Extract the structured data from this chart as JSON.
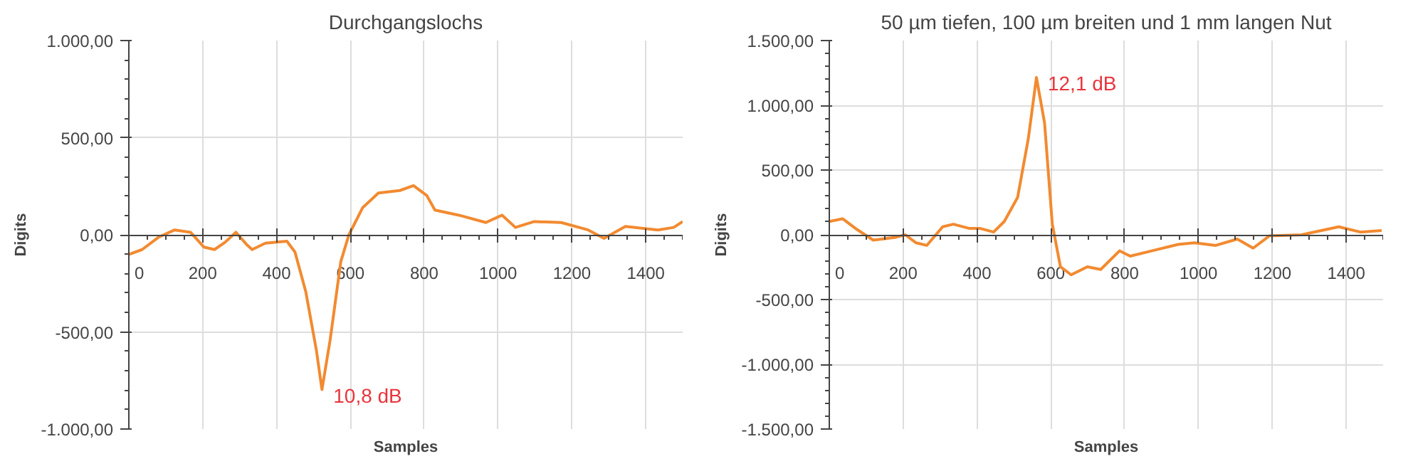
{
  "chart_data": [
    {
      "type": "line",
      "title": "Durchgangslochs",
      "xlabel": "Samples",
      "ylabel": "Digits",
      "xlim": [
        0,
        1500
      ],
      "xticks": [
        0,
        200,
        400,
        600,
        800,
        1000,
        1200,
        1400
      ],
      "ylim": [
        -1000,
        1000
      ],
      "yticks": [
        {
          "value": -1000,
          "label": "-1.000,00"
        },
        {
          "value": -500,
          "label": "-500,00"
        },
        {
          "value": 0,
          "label": "0,00"
        },
        {
          "value": 500,
          "label": "500,00"
        },
        {
          "value": 1000,
          "label": "1.000,00"
        }
      ],
      "grid": true,
      "series": [
        {
          "color": "#f28a30",
          "x": [
            0,
            36,
            80,
            124,
            167,
            203,
            232,
            261,
            290,
            319,
            334,
            370,
            428,
            450,
            479,
            508,
            523,
            545,
            574,
            596,
            633,
            676,
            734,
            771,
            807,
            829,
            894,
            967,
            1011,
            1047,
            1098,
            1171,
            1244,
            1287,
            1345,
            1433,
            1476,
            1500
          ],
          "values": [
            -101,
            -76,
            -13,
            25,
            13,
            -63,
            -76,
            -38,
            13,
            -50,
            -76,
            -43,
            -33,
            -89,
            -291,
            -595,
            -797,
            -544,
            -139,
            0,
            139,
            215,
            228,
            253,
            202,
            127,
            101,
            63,
            101,
            38,
            68,
            63,
            25,
            -18,
            43,
            25,
            38,
            68
          ]
        }
      ],
      "annotations": [
        {
          "text": "10,8 dB",
          "x": 523,
          "y": -797
        }
      ]
    },
    {
      "type": "line",
      "title": "50 µm tiefen, 100 µm breiten und 1 mm langen Nut",
      "xlabel": "Samples",
      "ylabel": "Digits",
      "xlim": [
        0,
        1500
      ],
      "xticks": [
        0,
        200,
        400,
        600,
        800,
        1000,
        1200,
        1400
      ],
      "ylim": [
        -1500,
        1500
      ],
      "yticks": [
        {
          "value": -1500,
          "label": "-1.500,00"
        },
        {
          "value": -1000,
          "label": "-1.000,00"
        },
        {
          "value": -500,
          "label": "-500,00"
        },
        {
          "value": 0,
          "label": "0,00"
        },
        {
          "value": 500,
          "label": "500,00"
        },
        {
          "value": 1000,
          "label": "1.000,00"
        },
        {
          "value": 1500,
          "label": "1.500,00"
        }
      ],
      "grid": true,
      "series": [
        {
          "color": "#f28a30",
          "x": [
            0,
            36,
            75,
            119,
            177,
            206,
            235,
            264,
            307,
            336,
            380,
            409,
            445,
            474,
            510,
            539,
            561,
            583,
            604,
            626,
            655,
            699,
            735,
            786,
            815,
            873,
            945,
            989,
            1047,
            1105,
            1148,
            1192,
            1279,
            1380,
            1438,
            1496
          ],
          "values": [
            103,
            124,
            41,
            -41,
            -21,
            0,
            -62,
            -82,
            62,
            82,
            49,
            49,
            21,
            103,
            288,
            742,
            1215,
            865,
            82,
            -247,
            -309,
            -247,
            -268,
            -124,
            -165,
            -124,
            -74,
            -62,
            -82,
            -33,
            -103,
            -8,
            0,
            62,
            21,
            33
          ]
        }
      ],
      "annotations": [
        {
          "text": "12,1 dB",
          "x": 561,
          "y": 1215
        }
      ]
    }
  ]
}
